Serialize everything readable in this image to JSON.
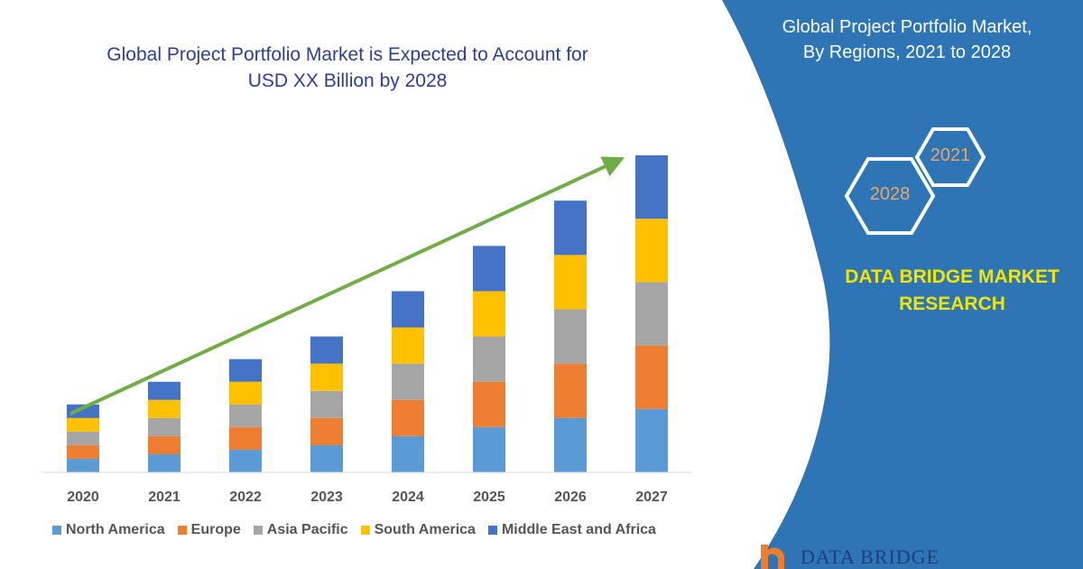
{
  "chart_data": {
    "type": "bar",
    "stacked": true,
    "title": "Global Project Portfolio Market is Expected to Account for\nUSD XX Billion by 2028",
    "categories": [
      "2020",
      "2021",
      "2022",
      "2023",
      "2024",
      "2025",
      "2026",
      "2027"
    ],
    "series": [
      {
        "name": "North America",
        "color": "#5b9bd5",
        "values": [
          15,
          20,
          25,
          30,
          40,
          50,
          60,
          70
        ]
      },
      {
        "name": "Europe",
        "color": "#ed7d31",
        "values": [
          15,
          20,
          25,
          30,
          40,
          50,
          60,
          70
        ]
      },
      {
        "name": "Asia Pacific",
        "color": "#a5a5a5",
        "values": [
          15,
          20,
          25,
          30,
          40,
          50,
          60,
          70
        ]
      },
      {
        "name": "South America",
        "color": "#ffc000",
        "values": [
          15,
          20,
          25,
          30,
          40,
          50,
          60,
          70
        ]
      },
      {
        "name": "Middle East and Africa",
        "color": "#4472c4",
        "values": [
          15,
          20,
          25,
          30,
          40,
          50,
          60,
          70
        ]
      }
    ],
    "ylim": [
      0,
      350
    ],
    "grid": false,
    "legend_position": "bottom",
    "trend_arrow_color": "#70ad47"
  },
  "panel": {
    "title": "Global Project Portfolio Market,\nBy Regions, 2021 to 2028",
    "hex_small_label": "2021",
    "hex_large_label": "2028",
    "brand": "DATA BRIDGE MARKET\nRESEARCH",
    "logo_text": "DATA BRIDGE",
    "background_color": "#2e75b6",
    "brand_color": "#f2e600"
  }
}
